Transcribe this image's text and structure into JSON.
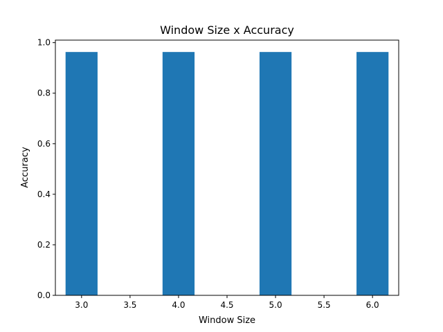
{
  "chart_data": {
    "type": "bar",
    "title": "Window Size x Accuracy",
    "xlabel": "Window Size",
    "ylabel": "Accuracy",
    "x": [
      3,
      4,
      5,
      6
    ],
    "values": [
      0.963,
      0.963,
      0.963,
      0.963
    ],
    "bar_width": 0.33,
    "xlim": [
      2.73,
      6.27
    ],
    "ylim": [
      0,
      1.01
    ],
    "xticks": [
      3.0,
      3.5,
      4.0,
      4.5,
      5.0,
      5.5,
      6.0
    ],
    "xtick_labels": [
      "3.0",
      "3.5",
      "4.0",
      "4.5",
      "5.0",
      "5.5",
      "6.0"
    ],
    "yticks": [
      0.0,
      0.2,
      0.4,
      0.6,
      0.8,
      1.0
    ],
    "ytick_labels": [
      "0.0",
      "0.2",
      "0.4",
      "0.6",
      "0.8",
      "1.0"
    ],
    "grid": false,
    "bar_color": "#1f77b4"
  }
}
